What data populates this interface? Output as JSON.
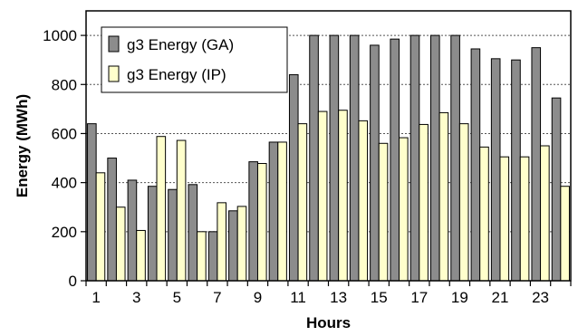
{
  "chart_data": {
    "type": "bar",
    "title": "",
    "xlabel": "Hours",
    "ylabel": "Energy (MWh)",
    "ylim": [
      0,
      1100
    ],
    "yticks": [
      0,
      200,
      400,
      600,
      800,
      1000
    ],
    "x_tick_labels": [
      "1",
      "3",
      "5",
      "7",
      "9",
      "11",
      "13",
      "15",
      "17",
      "19",
      "21",
      "23"
    ],
    "categories": [
      1,
      2,
      3,
      4,
      5,
      6,
      7,
      8,
      9,
      10,
      11,
      12,
      13,
      14,
      15,
      16,
      17,
      18,
      19,
      20,
      21,
      22,
      23,
      24
    ],
    "grid": "horizontal dotted",
    "legend_position": "top-left",
    "series": [
      {
        "name": "g3 Energy (GA)",
        "color": "#8c8c8c",
        "values": [
          640,
          500,
          410,
          385,
          372,
          392,
          200,
          285,
          485,
          565,
          840,
          1000,
          1000,
          1000,
          960,
          985,
          1000,
          1000,
          1000,
          945,
          905,
          900,
          950,
          745
        ]
      },
      {
        "name": "g3 Energy (IP)",
        "color": "#ffffcc",
        "values": [
          440,
          300,
          205,
          588,
          572,
          200,
          318,
          303,
          478,
          565,
          640,
          690,
          695,
          652,
          560,
          583,
          637,
          685,
          640,
          545,
          505,
          505,
          550,
          385
        ]
      }
    ]
  }
}
